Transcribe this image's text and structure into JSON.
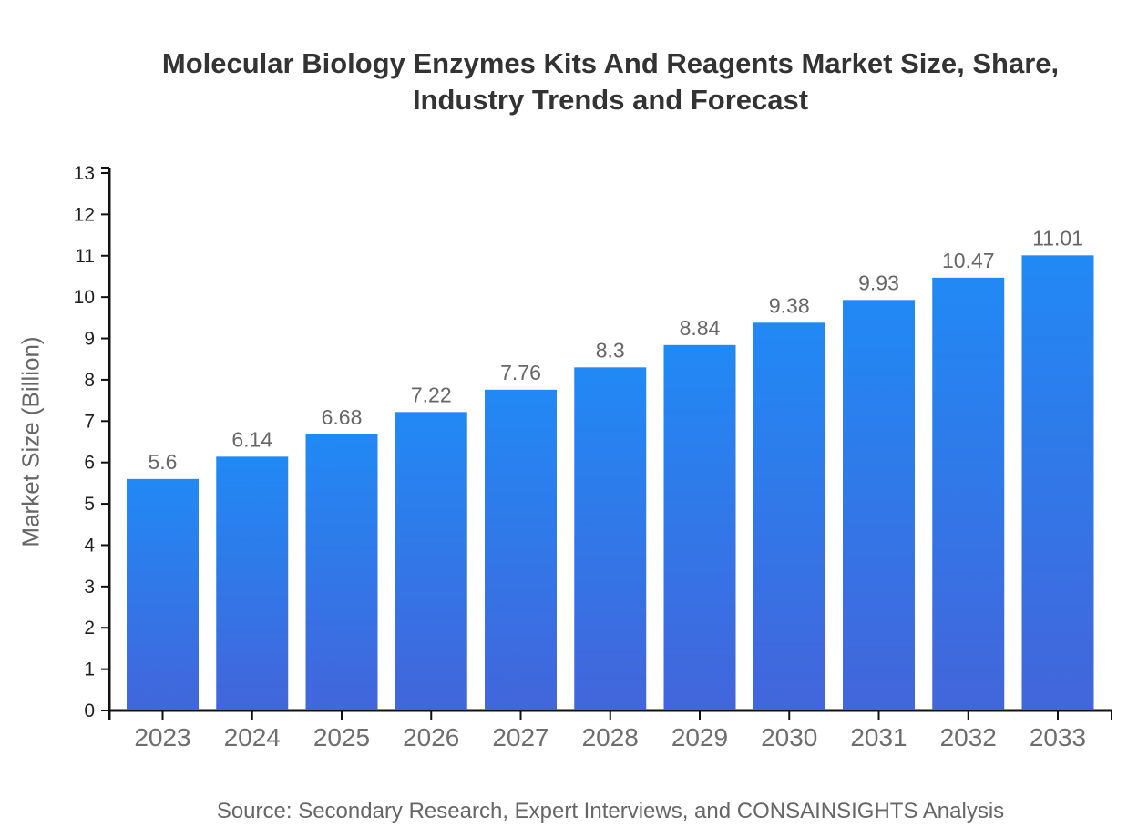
{
  "page": {
    "title_lines": [
      "Molecular Biology Enzymes Kits And Reagents Market Size, Share,",
      "Industry Trends and Forecast"
    ]
  },
  "chart_data": {
    "type": "bar",
    "title": "Molecular Biology Enzymes Kits And Reagents Market Size, Share, Industry Trends and Forecast",
    "categories": [
      "2023",
      "2024",
      "2025",
      "2026",
      "2027",
      "2028",
      "2029",
      "2030",
      "2031",
      "2032",
      "2033"
    ],
    "values": [
      5.6,
      6.14,
      6.68,
      7.22,
      7.76,
      8.3,
      8.84,
      9.38,
      9.93,
      10.47,
      11.01
    ],
    "value_labels": [
      "5.6",
      "6.14",
      "6.68",
      "7.22",
      "7.76",
      "8.3",
      "8.84",
      "9.38",
      "9.93",
      "10.47",
      "11.01"
    ],
    "xlabel": "",
    "ylabel": "Market Size (Billion)",
    "ylim": [
      0,
      13
    ],
    "ytick_step": 1,
    "yticks": [
      0,
      1,
      2,
      3,
      4,
      5,
      6,
      7,
      8,
      9,
      10,
      11,
      12,
      13
    ],
    "grid": false,
    "legend": false,
    "source": "Source: Secondary Research, Expert Interviews, and CONSAINSIGHTS Analysis",
    "colors": {
      "bar_gradient_top": "#2189F4",
      "bar_gradient_bottom": "#4365DB",
      "axis": "#111111",
      "ytick_label": "#1f1f1f",
      "xtick_label": "#6e6e6e",
      "value_label": "#666666",
      "title": "#333333",
      "muted_text": "#666666"
    }
  }
}
